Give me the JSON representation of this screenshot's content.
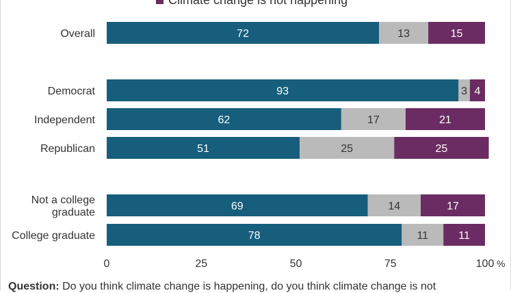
{
  "legend": [
    {
      "label": "Climate change is not happening",
      "color": "#6a2c62"
    }
  ],
  "footnote": {
    "label": "Question:",
    "text": "Do you think climate change is happening, do you think climate change is not"
  },
  "chart_data": {
    "type": "bar",
    "orientation": "horizontal",
    "stacked": true,
    "categories": [
      "Overall",
      "Democrat",
      "Independent",
      "Republican",
      "Not a college graduate",
      "College graduate"
    ],
    "category_display": [
      [
        "Overall"
      ],
      [
        "Democrat"
      ],
      [
        "Independent"
      ],
      [
        "Republican"
      ],
      [
        "Not a college",
        "graduate"
      ],
      [
        "College graduate"
      ]
    ],
    "series": [
      {
        "values": [
          72,
          93,
          62,
          51,
          69,
          78
        ],
        "color": "#165e7c",
        "label_color": "#ffffff"
      },
      {
        "values": [
          13,
          3,
          17,
          25,
          14,
          11
        ],
        "color": "#bababa",
        "label_color": "#333333"
      },
      {
        "name": "Climate change is not happening",
        "values": [
          15,
          4,
          21,
          25,
          17,
          11
        ],
        "color": "#6a2c62",
        "label_color": "#ffffff"
      }
    ],
    "xlim": [
      0,
      100
    ],
    "xticks": [
      "0",
      "25",
      "50",
      "75",
      "100"
    ],
    "x_unit": "%",
    "grid": false,
    "legend_position": "top"
  }
}
